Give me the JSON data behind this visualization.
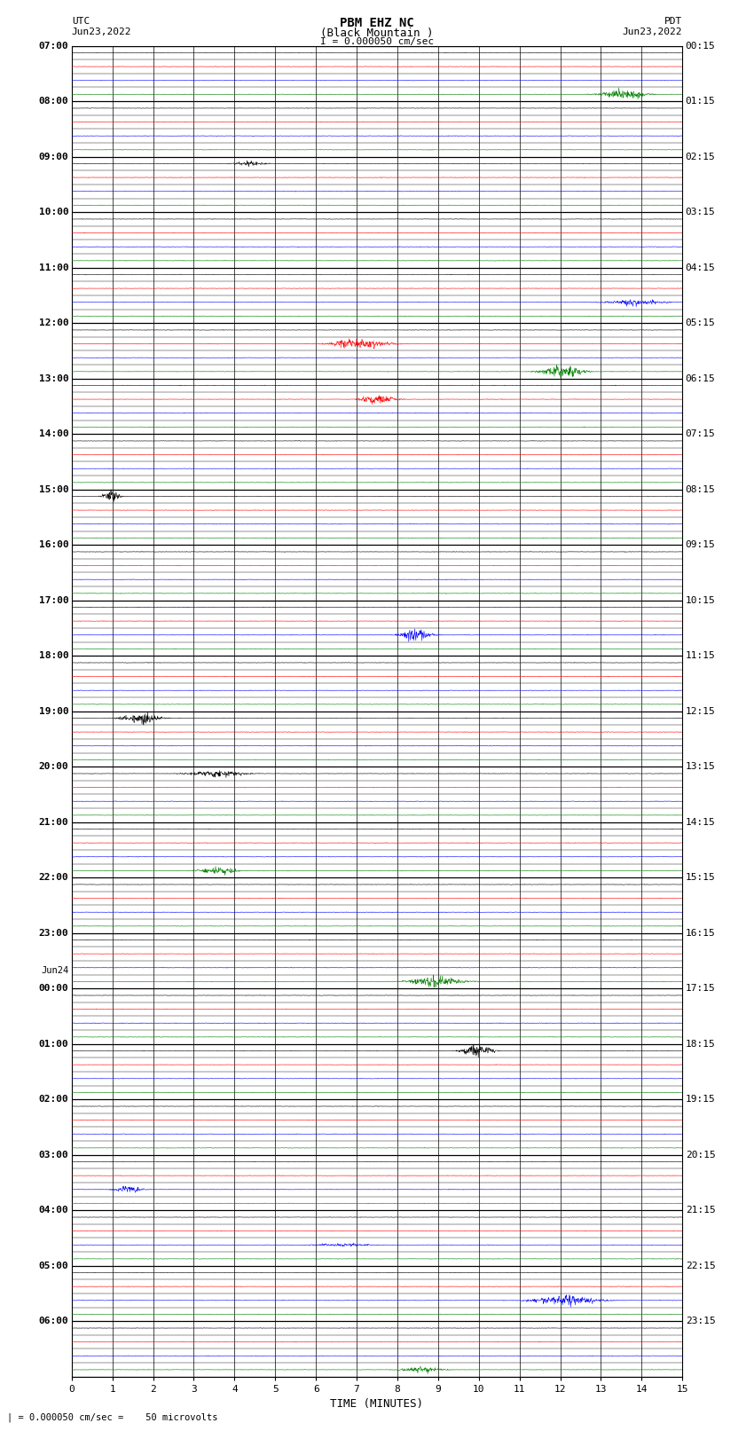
{
  "title_line1": "PBM EHZ NC",
  "title_line2": "(Black Mountain )",
  "scale_label": "I = 0.000050 cm/sec",
  "left_label_top": "UTC",
  "left_label_date": "Jun23,2022",
  "right_label_top": "PDT",
  "right_label_date": "Jun23,2022",
  "bottom_label": "TIME (MINUTES)",
  "footer_label": "| = 0.000050 cm/sec =    50 microvolts",
  "xlabel_ticks": [
    0,
    1,
    2,
    3,
    4,
    5,
    6,
    7,
    8,
    9,
    10,
    11,
    12,
    13,
    14,
    15
  ],
  "left_times": [
    "07:00",
    "",
    "",
    "",
    "08:00",
    "",
    "",
    "",
    "09:00",
    "",
    "",
    "",
    "10:00",
    "",
    "",
    "",
    "11:00",
    "",
    "",
    "",
    "12:00",
    "",
    "",
    "",
    "13:00",
    "",
    "",
    "",
    "14:00",
    "",
    "",
    "",
    "15:00",
    "",
    "",
    "",
    "16:00",
    "",
    "",
    "",
    "17:00",
    "",
    "",
    "",
    "18:00",
    "",
    "",
    "",
    "19:00",
    "",
    "",
    "",
    "20:00",
    "",
    "",
    "",
    "21:00",
    "",
    "",
    "",
    "22:00",
    "",
    "",
    "",
    "23:00",
    "",
    "",
    "Jun24",
    "00:00",
    "",
    "",
    "",
    "01:00",
    "",
    "",
    "",
    "02:00",
    "",
    "",
    "",
    "03:00",
    "",
    "",
    "",
    "04:00",
    "",
    "",
    "",
    "05:00",
    "",
    "",
    "",
    "06:00",
    "",
    "",
    ""
  ],
  "right_times": [
    "00:15",
    "",
    "",
    "",
    "01:15",
    "",
    "",
    "",
    "02:15",
    "",
    "",
    "",
    "03:15",
    "",
    "",
    "",
    "04:15",
    "",
    "",
    "",
    "05:15",
    "",
    "",
    "",
    "06:15",
    "",
    "",
    "",
    "07:15",
    "",
    "",
    "",
    "08:15",
    "",
    "",
    "",
    "09:15",
    "",
    "",
    "",
    "10:15",
    "",
    "",
    "",
    "11:15",
    "",
    "",
    "",
    "12:15",
    "",
    "",
    "",
    "13:15",
    "",
    "",
    "",
    "14:15",
    "",
    "",
    "",
    "15:15",
    "",
    "",
    "",
    "16:15",
    "",
    "",
    "",
    "17:15",
    "",
    "",
    "",
    "18:15",
    "",
    "",
    "",
    "19:15",
    "",
    "",
    "",
    "20:15",
    "",
    "",
    "",
    "21:15",
    "",
    "",
    "",
    "22:15",
    "",
    "",
    "",
    "23:15",
    "",
    "",
    ""
  ],
  "num_rows": 96,
  "num_cols": 15,
  "bg_color": "#ffffff",
  "line_colors": [
    "black",
    "red",
    "blue",
    "green"
  ],
  "grid_color": "#000000",
  "noise_scale": 0.008,
  "event_prob": 0.15,
  "seed": 42
}
